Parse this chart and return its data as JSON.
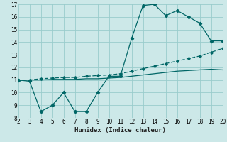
{
  "xlabel": "Humidex (Indice chaleur)",
  "bg_color": "#cce8e8",
  "grid_color": "#99cccc",
  "line_color": "#006666",
  "xlim": [
    2,
    20
  ],
  "ylim": [
    8,
    17
  ],
  "xticks": [
    2,
    3,
    4,
    5,
    6,
    7,
    8,
    9,
    10,
    11,
    12,
    13,
    14,
    15,
    16,
    17,
    18,
    19,
    20
  ],
  "yticks": [
    8,
    9,
    10,
    11,
    12,
    13,
    14,
    15,
    16,
    17
  ],
  "series1_x": [
    2,
    3,
    4,
    5,
    6,
    7,
    8,
    9,
    10,
    11,
    12,
    13,
    14,
    15,
    16,
    17,
    18,
    19,
    20
  ],
  "series1_y": [
    11.0,
    10.9,
    8.5,
    9.0,
    10.0,
    8.5,
    8.5,
    10.0,
    11.3,
    11.3,
    14.3,
    16.9,
    17.0,
    16.1,
    16.5,
    16.0,
    15.5,
    14.1,
    14.1
  ],
  "series2_x": [
    2,
    3,
    4,
    5,
    6,
    7,
    8,
    9,
    10,
    11,
    12,
    13,
    14,
    15,
    16,
    17,
    18,
    19,
    20
  ],
  "series2_y": [
    11.0,
    11.0,
    11.1,
    11.15,
    11.2,
    11.2,
    11.3,
    11.35,
    11.4,
    11.5,
    11.7,
    11.9,
    12.1,
    12.3,
    12.5,
    12.7,
    12.9,
    13.2,
    13.5
  ],
  "series3_x": [
    2,
    3,
    4,
    5,
    6,
    7,
    8,
    9,
    10,
    11,
    12,
    13,
    14,
    15,
    16,
    17,
    18,
    19,
    20
  ],
  "series3_y": [
    11.0,
    11.0,
    11.0,
    11.05,
    11.05,
    11.05,
    11.1,
    11.1,
    11.15,
    11.2,
    11.3,
    11.4,
    11.5,
    11.6,
    11.7,
    11.75,
    11.8,
    11.85,
    11.8
  ]
}
